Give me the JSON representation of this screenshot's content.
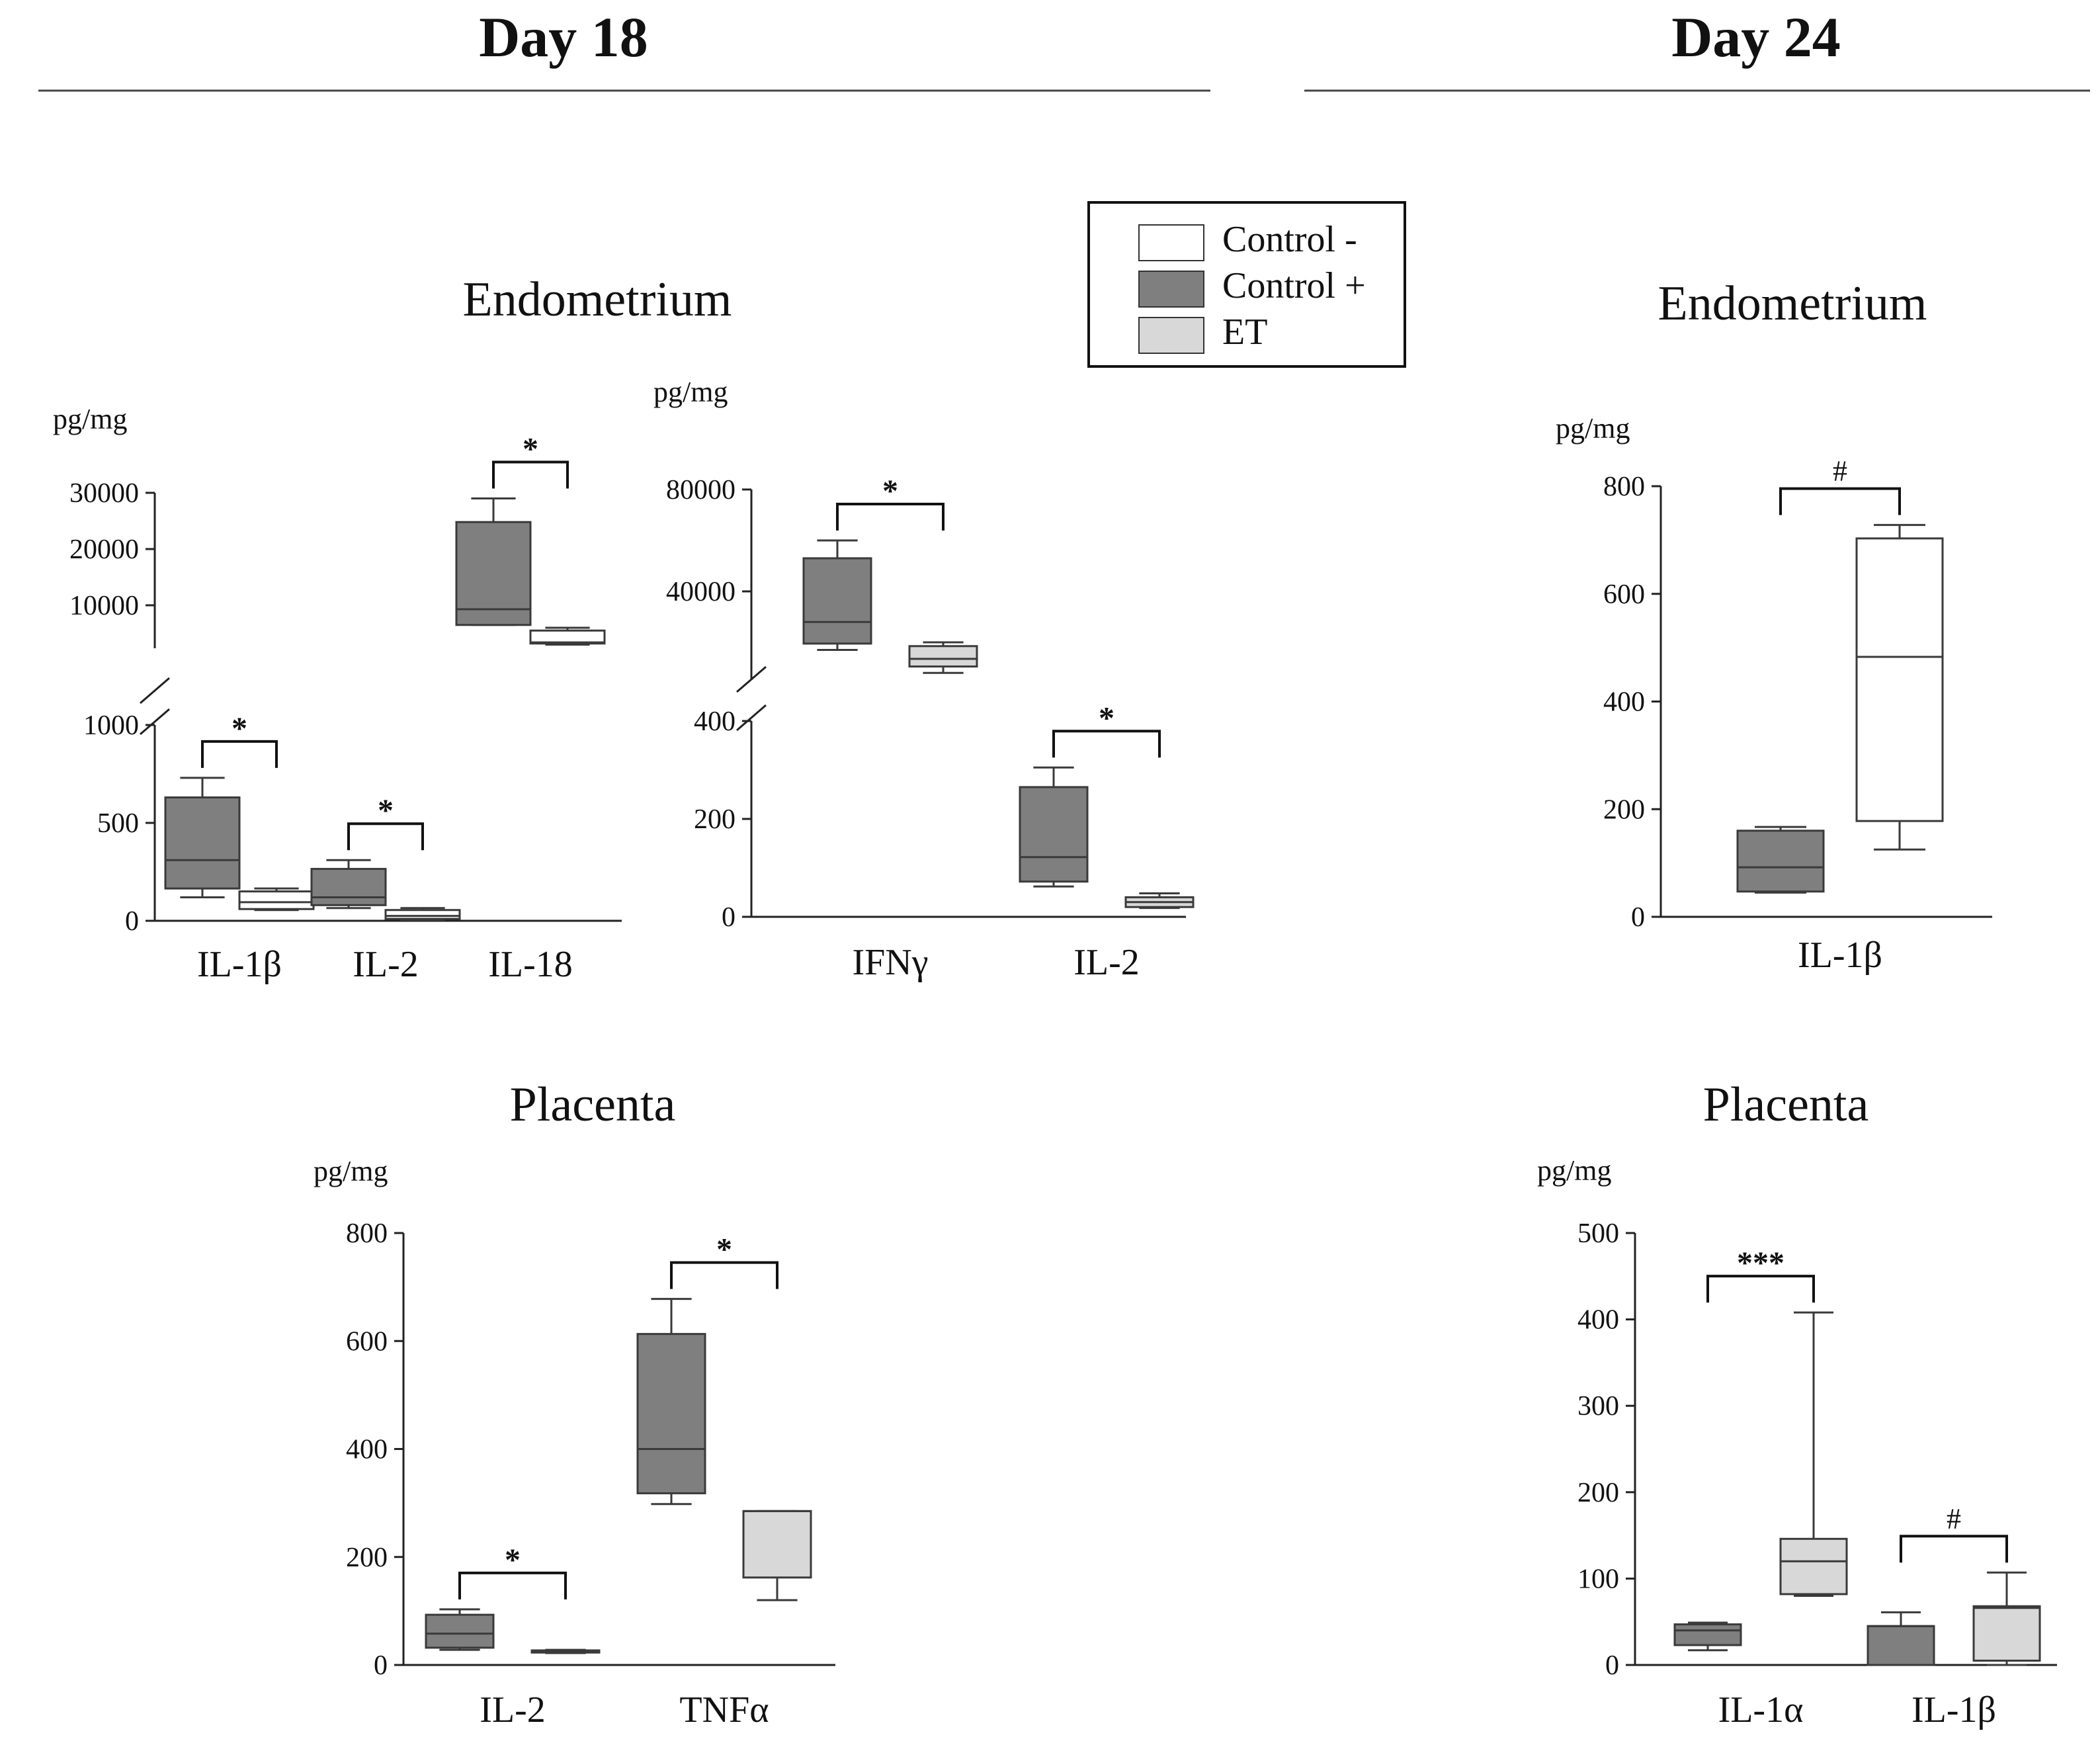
{
  "colors": {
    "control_neg": "#ffffff",
    "control_pos": "#7f7f7f",
    "et": "#d8d8d8",
    "stroke": "#3a3a3a",
    "axis": "#222222"
  },
  "sections": [
    {
      "id": "day18",
      "title": "Day 18"
    },
    {
      "id": "day24",
      "title": "Day 24"
    }
  ],
  "legend": {
    "items": [
      {
        "label": "Control -",
        "color_key": "control_neg"
      },
      {
        "label": "Control +",
        "color_key": "control_pos"
      },
      {
        "label": "ET",
        "color_key": "et"
      }
    ]
  },
  "panel_titles": [
    {
      "id": "d18-endo",
      "text": "Endometrium"
    },
    {
      "id": "d18-plac",
      "text": "Placenta"
    },
    {
      "id": "d24-endo",
      "text": "Endometrium"
    },
    {
      "id": "d24-plac",
      "text": "Placenta"
    }
  ],
  "chart_data": [
    {
      "id": "d18-endo-a",
      "type": "box",
      "section": "Day 18",
      "tissue": "Endometrium",
      "ylabel": "pg/mg",
      "categories": [
        "IL-1β",
        "IL-2",
        "IL-18"
      ],
      "broken_axis": {
        "lower": {
          "range": [
            0,
            1000
          ],
          "ticks": [
            0,
            500,
            1000
          ]
        },
        "upper": {
          "range": [
            0,
            30000
          ],
          "ticks": [
            10000,
            20000,
            30000
          ]
        }
      },
      "boxes": [
        {
          "category": "IL-1β",
          "group": "control_pos",
          "segment": "lower",
          "min": 120,
          "q1": 165,
          "median": 310,
          "q3": 630,
          "max": 730
        },
        {
          "category": "IL-1β",
          "group": "control_neg",
          "segment": "lower",
          "min": 55,
          "q1": 60,
          "median": 95,
          "q3": 150,
          "max": 165
        },
        {
          "category": "IL-2",
          "group": "control_pos",
          "segment": "lower",
          "min": 65,
          "q1": 80,
          "median": 120,
          "q3": 265,
          "max": 310
        },
        {
          "category": "IL-2",
          "group": "control_neg",
          "segment": "lower",
          "min": 5,
          "q1": 10,
          "median": 25,
          "q3": 55,
          "max": 65
        },
        {
          "category": "IL-18",
          "group": "control_pos",
          "segment": "upper",
          "min": 6500,
          "q1": 6500,
          "median": 9300,
          "q3": 24800,
          "max": 29000
        },
        {
          "category": "IL-18",
          "group": "control_neg",
          "segment": "upper",
          "min": 3000,
          "q1": 3200,
          "median": 3400,
          "q3": 5500,
          "max": 6000
        }
      ],
      "significance": [
        {
          "category": "IL-1β",
          "label": "*"
        },
        {
          "category": "IL-2",
          "label": "*"
        },
        {
          "category": "IL-18",
          "label": "*"
        }
      ]
    },
    {
      "id": "d18-endo-b",
      "type": "box",
      "section": "Day 18",
      "tissue": "Endometrium",
      "ylabel": "pg/mg",
      "categories": [
        "IFNγ",
        "IL-2"
      ],
      "broken_axis": {
        "lower": {
          "range": [
            0,
            400
          ],
          "ticks": [
            0,
            200,
            400
          ]
        },
        "upper": {
          "range": [
            0,
            80000
          ],
          "ticks": [
            40000,
            80000
          ]
        }
      },
      "boxes": [
        {
          "category": "IFNγ",
          "group": "control_pos",
          "segment": "upper",
          "min": 17000,
          "q1": 19500,
          "median": 28000,
          "q3": 53000,
          "max": 60000
        },
        {
          "category": "IFNγ",
          "group": "et",
          "segment": "upper",
          "min": 8000,
          "q1": 10500,
          "median": 13500,
          "q3": 18500,
          "max": 20000
        },
        {
          "category": "IL-2",
          "group": "control_pos",
          "segment": "lower",
          "min": 62,
          "q1": 72,
          "median": 122,
          "q3": 265,
          "max": 305
        },
        {
          "category": "IL-2",
          "group": "et",
          "segment": "lower",
          "min": 18,
          "q1": 20,
          "median": 30,
          "q3": 40,
          "max": 48
        }
      ],
      "significance": [
        {
          "category": "IFNγ",
          "label": "*"
        },
        {
          "category": "IL-2",
          "label": "*"
        }
      ]
    },
    {
      "id": "d18-plac",
      "type": "box",
      "section": "Day 18",
      "tissue": "Placenta",
      "ylabel": "pg/mg",
      "categories": [
        "IL-2",
        "TNFα"
      ],
      "ylim": [
        0,
        800
      ],
      "ticks": [
        0,
        200,
        400,
        600,
        800
      ],
      "boxes": [
        {
          "category": "IL-2",
          "group": "control_pos",
          "min": 28,
          "q1": 32,
          "median": 58,
          "q3": 93,
          "max": 103
        },
        {
          "category": "IL-2",
          "group": "et",
          "min": 22,
          "q1": 23,
          "median": 25,
          "q3": 27,
          "max": 28
        },
        {
          "category": "TNFα",
          "group": "control_pos",
          "min": 298,
          "q1": 318,
          "median": 400,
          "q3": 613,
          "max": 678
        },
        {
          "category": "TNFα",
          "group": "et",
          "min": 120,
          "q1": 162,
          "median": 285,
          "q3": 285,
          "max": 285
        }
      ],
      "significance": [
        {
          "category": "IL-2",
          "label": "*"
        },
        {
          "category": "TNFα",
          "label": "*"
        }
      ]
    },
    {
      "id": "d24-endo",
      "type": "box",
      "section": "Day 24",
      "tissue": "Endometrium",
      "ylabel": "pg/mg",
      "categories": [
        "IL-1β"
      ],
      "ylim": [
        0,
        800
      ],
      "ticks": [
        0,
        200,
        400,
        600,
        800
      ],
      "boxes": [
        {
          "category": "IL-1β",
          "group": "control_pos",
          "min": 45,
          "q1": 47,
          "median": 92,
          "q3": 160,
          "max": 167
        },
        {
          "category": "IL-1β",
          "group": "control_neg",
          "min": 125,
          "q1": 178,
          "median": 483,
          "q3": 703,
          "max": 728
        }
      ],
      "significance": [
        {
          "category": "IL-1β",
          "label": "#"
        }
      ]
    },
    {
      "id": "d24-plac",
      "type": "box",
      "section": "Day 24",
      "tissue": "Placenta",
      "ylabel": "pg/mg",
      "categories": [
        "IL-1α",
        "IL-1β"
      ],
      "ylim": [
        0,
        500
      ],
      "ticks": [
        0,
        100,
        200,
        300,
        400,
        500
      ],
      "boxes": [
        {
          "category": "IL-1α",
          "group": "control_pos",
          "min": 17,
          "q1": 23,
          "median": 40,
          "q3": 47,
          "max": 49
        },
        {
          "category": "IL-1α",
          "group": "et",
          "min": 80,
          "q1": 82,
          "median": 120,
          "q3": 146,
          "max": 408
        },
        {
          "category": "IL-1β",
          "group": "control_pos",
          "min": 0,
          "q1": 0,
          "median": 45,
          "q3": 45,
          "max": 61
        },
        {
          "category": "IL-1β",
          "group": "et",
          "min": 0,
          "q1": 5,
          "median": 66,
          "q3": 68,
          "max": 107
        }
      ],
      "significance": [
        {
          "category": "IL-1α",
          "label": "***"
        },
        {
          "category": "IL-1β",
          "label": "#"
        }
      ]
    }
  ]
}
